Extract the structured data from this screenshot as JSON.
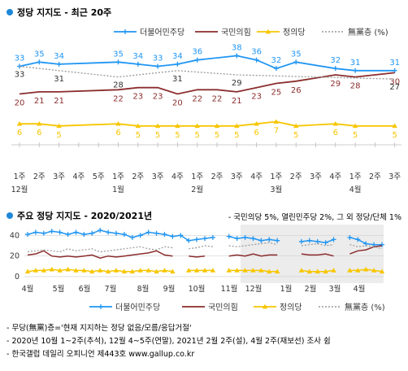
{
  "colors": {
    "blue": "#2196f3",
    "red": "#8b2d2d",
    "yellow": "#f7c600",
    "gray": "#999999",
    "bullet": "#1e88d8"
  },
  "chart_data": [
    {
      "type": "line",
      "title": "정당 지지도 - 최근 20주",
      "x": [
        "1주",
        "2주",
        "3주",
        "4주",
        "5주",
        "1주",
        "2주",
        "3주",
        "4주",
        "1주",
        "2주",
        "3주",
        "4주",
        "1주",
        "2주",
        "3주",
        "4주",
        "1주",
        "2주",
        "3주"
      ],
      "month_labels": [
        {
          "label": "12월",
          "at": 0
        },
        {
          "label": "1월",
          "at": 5
        },
        {
          "label": "2월",
          "at": 9
        },
        {
          "label": "3월",
          "at": 13
        },
        {
          "label": "4월",
          "at": 17
        }
      ],
      "series": [
        {
          "name": "더불어민주당",
          "color": "#2196f3",
          "marker": "plus",
          "values": [
            33,
            35,
            34,
            null,
            null,
            35,
            34,
            33,
            34,
            36,
            null,
            38,
            36,
            32,
            35,
            null,
            32,
            31,
            null,
            31
          ],
          "show_labels": [
            true,
            true,
            true,
            false,
            false,
            true,
            true,
            true,
            true,
            true,
            false,
            true,
            true,
            true,
            true,
            false,
            true,
            true,
            false,
            true
          ]
        },
        {
          "name": "국민의힘",
          "color": "#8b2d2d",
          "marker": "none",
          "values": [
            20,
            21,
            21,
            null,
            null,
            22,
            23,
            23,
            20,
            22,
            22,
            21,
            23,
            25,
            26,
            null,
            29,
            28,
            null,
            30
          ],
          "show_labels": [
            true,
            true,
            true,
            false,
            false,
            true,
            true,
            true,
            true,
            true,
            true,
            true,
            true,
            true,
            true,
            false,
            true,
            true,
            false,
            true
          ]
        },
        {
          "name": "정의당",
          "color": "#f7c600",
          "marker": "triangle",
          "values": [
            6,
            6,
            5,
            null,
            null,
            6,
            5,
            5,
            5,
            5,
            5,
            5,
            6,
            7,
            5,
            null,
            6,
            5,
            null,
            5
          ],
          "show_labels": [
            true,
            true,
            true,
            false,
            false,
            true,
            true,
            true,
            true,
            true,
            true,
            true,
            true,
            true,
            true,
            false,
            true,
            true,
            false,
            true
          ]
        },
        {
          "name": "無黨층 (%)",
          "color": "#999999",
          "marker": "none",
          "dashed": true,
          "values": [
            33,
            null,
            31,
            null,
            null,
            28,
            null,
            null,
            31,
            null,
            null,
            29,
            null,
            null,
            null,
            null,
            null,
            null,
            null,
            27
          ],
          "show_labels": [
            true,
            false,
            true,
            false,
            false,
            true,
            false,
            false,
            true,
            false,
            false,
            true,
            false,
            false,
            false,
            false,
            false,
            false,
            false,
            true
          ]
        }
      ],
      "ylim": [
        0,
        42
      ],
      "grid": false,
      "legend": "top-right",
      "footnote": "- 국민의당 5%, 열린민주당 2%, 그 외 정당/단체 1%"
    },
    {
      "type": "line",
      "title": "주요 정당 지지도 - 2020/2021년",
      "x_labels": [
        "4월",
        "5월",
        "6월",
        "7월",
        "8월",
        "9월",
        "10월",
        "11월",
        "12월",
        "1월",
        "2월",
        "3월",
        "4월"
      ],
      "y_ticks": [
        0,
        20,
        40
      ],
      "ylim": [
        0,
        45
      ],
      "grid": true,
      "legend": "bottom",
      "shaded_range": "12월 - 4월",
      "series": [
        {
          "name": "더불어민주당",
          "color": "#2196f3",
          "marker": "plus",
          "values": [
            41,
            43,
            42,
            44,
            43,
            41,
            43,
            41,
            42,
            45,
            43,
            42,
            41,
            38,
            40,
            43,
            42,
            41,
            39,
            40,
            35,
            36,
            37,
            38,
            null,
            39,
            37,
            38,
            37,
            35,
            36,
            35,
            null,
            null,
            34,
            35,
            34,
            33,
            36,
            null,
            38,
            36,
            32,
            31,
            31
          ]
        },
        {
          "name": "국민의힘",
          "color": "#8b2d2d",
          "marker": "none",
          "values": [
            21,
            22,
            25,
            20,
            19,
            20,
            19,
            20,
            21,
            18,
            20,
            19,
            20,
            21,
            22,
            23,
            25,
            21,
            20,
            null,
            20,
            19,
            20,
            null,
            null,
            20,
            21,
            20,
            22,
            20,
            21,
            21,
            null,
            null,
            22,
            21,
            21,
            22,
            20,
            null,
            22,
            25,
            26,
            29,
            30
          ]
        },
        {
          "name": "정의당",
          "color": "#f7c600",
          "marker": "triangle",
          "values": [
            5,
            6,
            6,
            7,
            6,
            7,
            6,
            6,
            5,
            6,
            5,
            6,
            5,
            5,
            6,
            6,
            5,
            6,
            5,
            null,
            6,
            6,
            6,
            6,
            null,
            6,
            6,
            6,
            6,
            6,
            5,
            5,
            null,
            null,
            6,
            5,
            5,
            5,
            6,
            null,
            6,
            6,
            7,
            6,
            5
          ]
        },
        {
          "name": "無黨층 (%)",
          "color": "#999999",
          "marker": "none",
          "dashed": true,
          "values": [
            24,
            25,
            26,
            25,
            24,
            27,
            25,
            26,
            27,
            24,
            25,
            26,
            27,
            28,
            29,
            27,
            26,
            29,
            28,
            null,
            27,
            28,
            30,
            29,
            null,
            30,
            29,
            30,
            31,
            32,
            33,
            31,
            null,
            null,
            30,
            31,
            32,
            30,
            31,
            null,
            31,
            29,
            30,
            29,
            27
          ]
        }
      ],
      "notes": [
        "- 무당(無黨)층='현재 지지하는 정당 없음/모름/응답거절'",
        "- 2020년 10월 1~2주(추석), 12월 4~5주(연말), 2021년 2월 2주(설), 4월 2주(재보선) 조사 쉼",
        "- 한국갤럽 데일리 오피니언 제443호 www.gallup.co.kr"
      ]
    }
  ]
}
